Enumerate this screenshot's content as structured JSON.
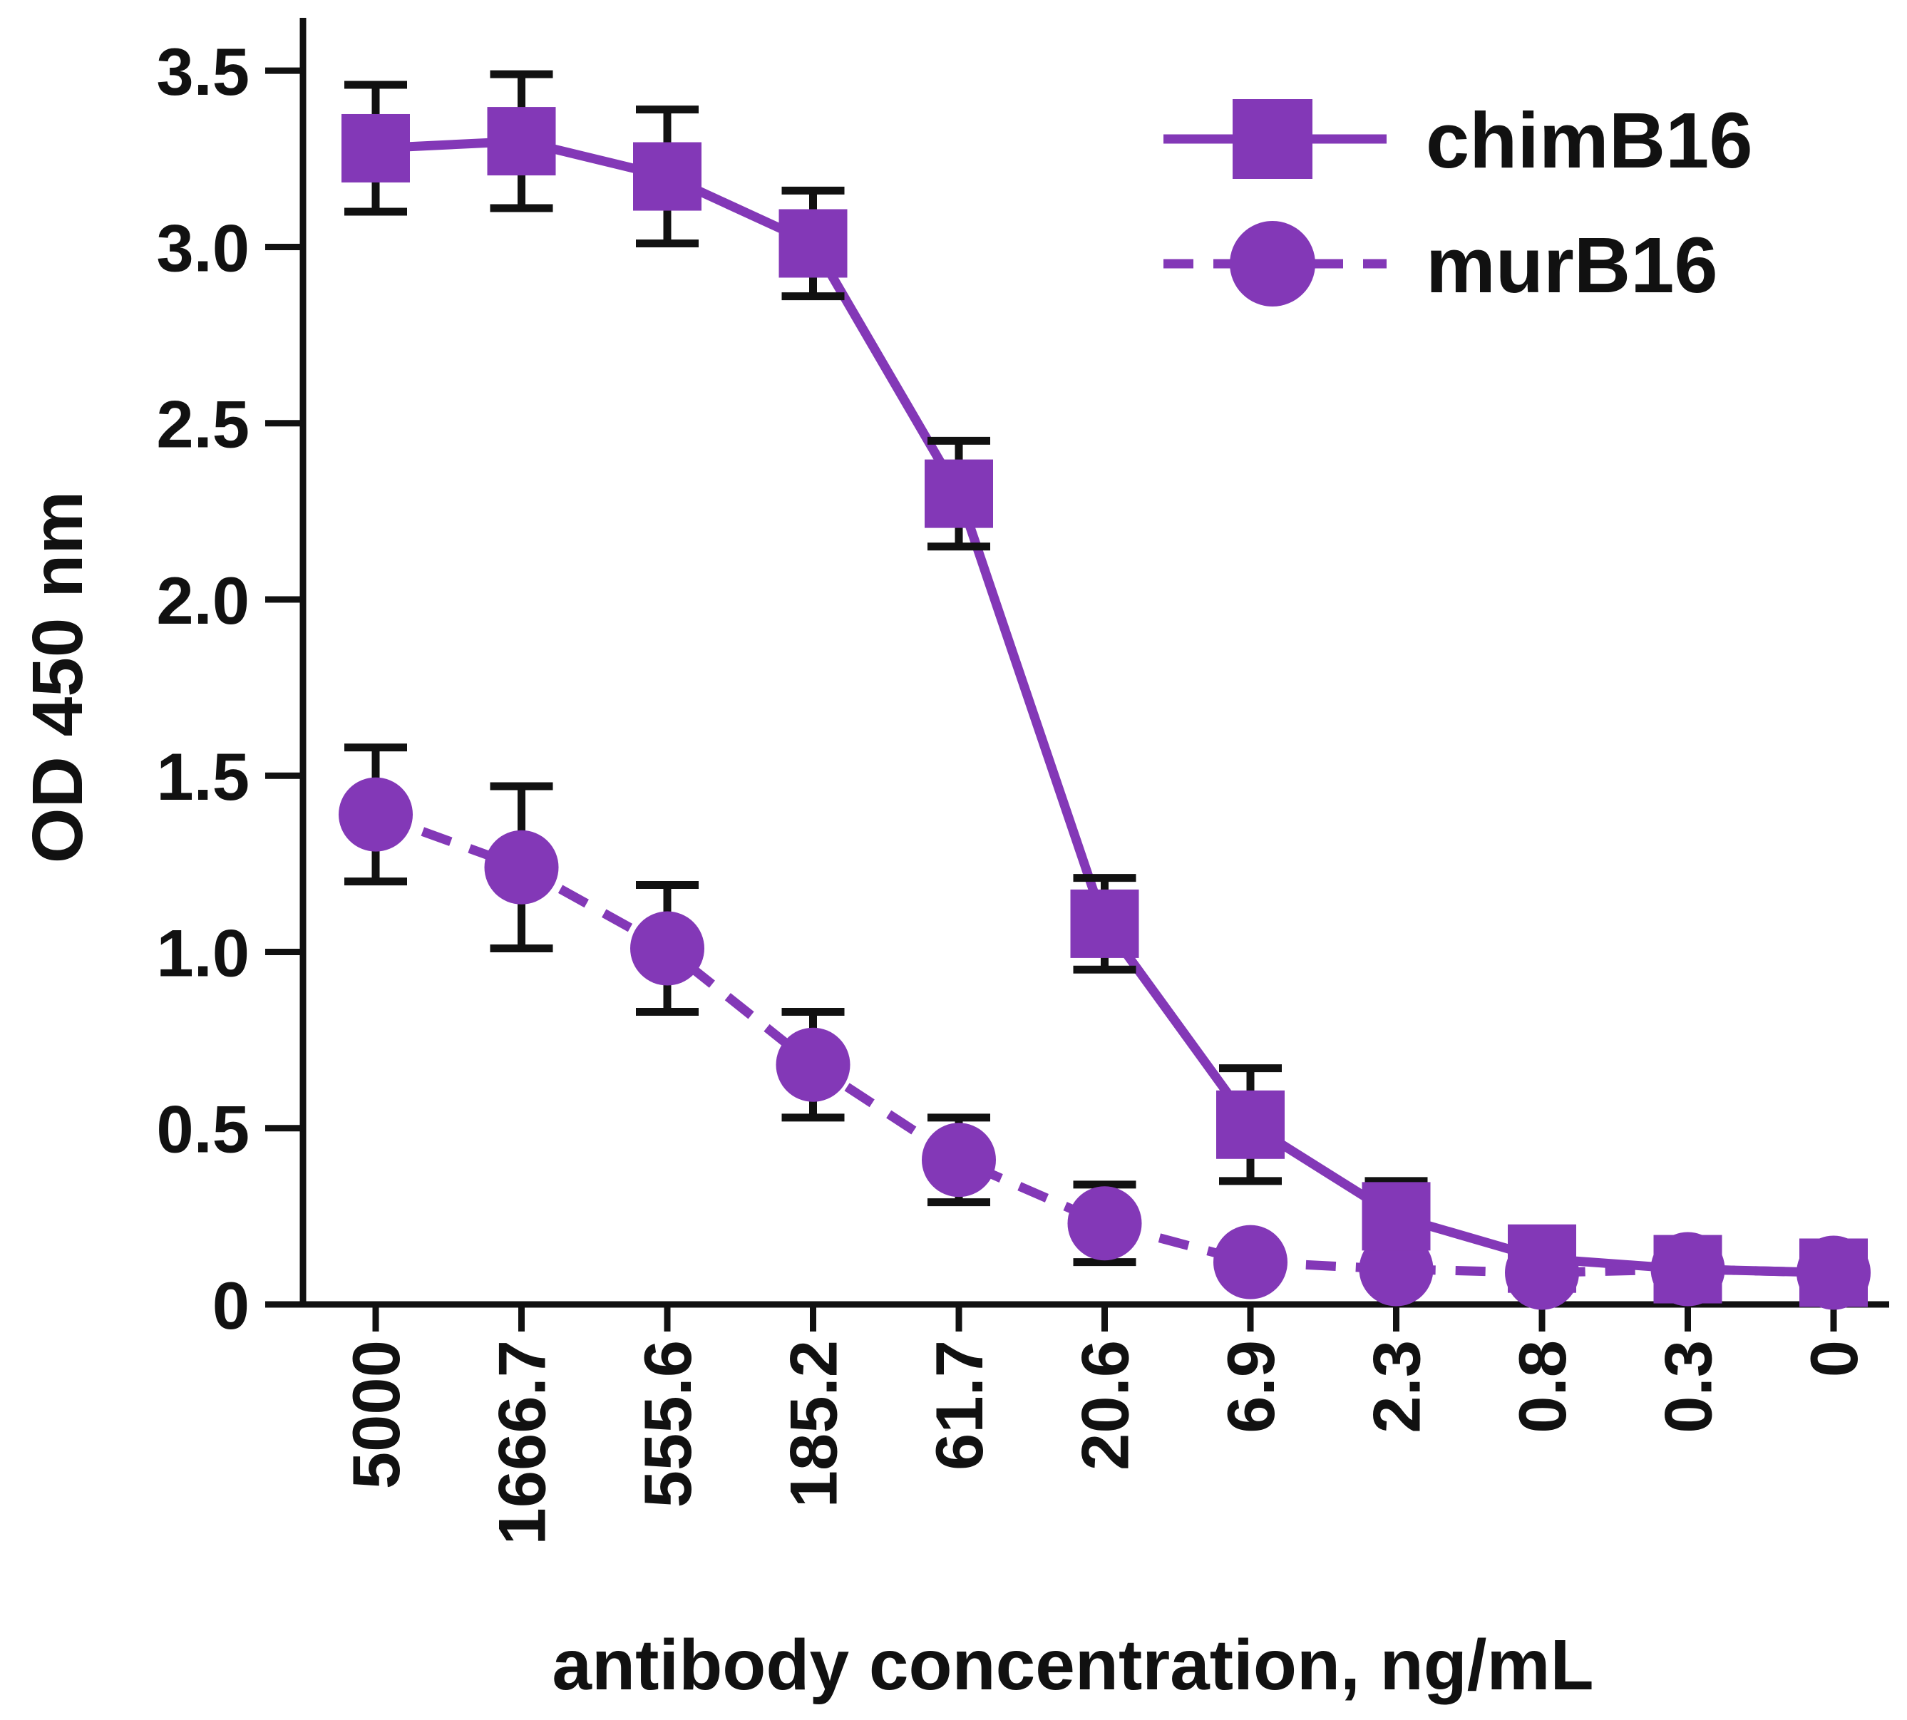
{
  "chart_data": {
    "type": "line",
    "categories": [
      "5000",
      "1666.7",
      "555.6",
      "185.2",
      "61.7",
      "20.6",
      "6.9",
      "2.3",
      "0.8",
      "0.3",
      "0"
    ],
    "xlabel": "antibody concentration, ng/mL",
    "ylabel": "OD 450 nm",
    "ylim": [
      0,
      3.65
    ],
    "yticks": [
      "0",
      "0.5",
      "1.0",
      "1.5",
      "2.0",
      "2.5",
      "3.0",
      "3.5"
    ],
    "ytick_values": [
      0,
      0.5,
      1.0,
      1.5,
      2.0,
      2.5,
      3.0,
      3.5
    ],
    "grid": false,
    "legend_position": "top-right",
    "series": [
      {
        "name": "chimB16",
        "marker": "square",
        "line_style": "solid",
        "color": "#8338B7",
        "values": [
          3.28,
          3.3,
          3.2,
          3.01,
          2.3,
          1.08,
          0.51,
          0.25,
          0.13,
          0.1,
          0.09
        ],
        "errors": [
          0.18,
          0.19,
          0.19,
          0.15,
          0.15,
          0.13,
          0.16,
          0.1,
          0.03,
          0.02,
          0.02
        ]
      },
      {
        "name": "murB16",
        "marker": "circle",
        "line_style": "dashed",
        "color": "#8338B7",
        "values": [
          1.39,
          1.24,
          1.01,
          0.68,
          0.41,
          0.23,
          0.12,
          0.1,
          0.09,
          0.1,
          0.09
        ],
        "errors": [
          0.19,
          0.23,
          0.18,
          0.15,
          0.12,
          0.11,
          0.03,
          0.02,
          0.02,
          0.02,
          0.02
        ]
      }
    ]
  }
}
